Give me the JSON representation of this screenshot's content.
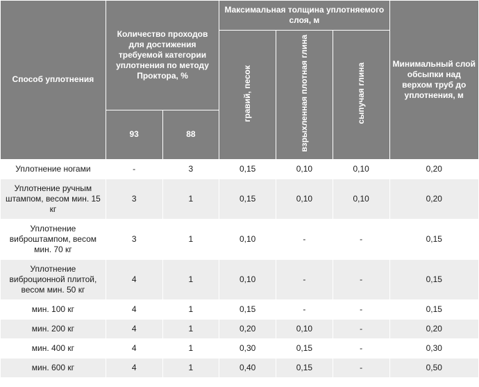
{
  "colors": {
    "header_bg": "#808080",
    "header_fg": "#ffffff",
    "row_odd_bg": "#ffffff",
    "row_even_bg": "#ededed",
    "border": "#ffffff",
    "text": "#1a1a1a"
  },
  "typography": {
    "font_family": "Arial, Helvetica, sans-serif",
    "cell_fontsize_pt": 9,
    "header_fontsize_pt": 9
  },
  "header": {
    "method": "Способ уплотнения",
    "passes_group": "Количество проходов для достижения требуемой категории уплотнения по методу Проктора, %",
    "passes_sub": [
      "93",
      "88"
    ],
    "thickness_group": "Максимальная толщина уплотняемого слоя, м",
    "thickness_sub": [
      "гравий, песок",
      "взрыхленная плотная глина",
      "сыпучая глина"
    ],
    "min_layer": "Минимальный слой обсыпки над верхом труб до уплотнения, м"
  },
  "rows": [
    {
      "method": "Уплотнение ногами",
      "p93": "-",
      "p88": "3",
      "t1": "0,15",
      "t2": "0,10",
      "t3": "0,10",
      "min": "0,20"
    },
    {
      "method": "Уплотнение ручным штампом, весом мин. 15 кг",
      "p93": "3",
      "p88": "1",
      "t1": "0,15",
      "t2": "0,10",
      "t3": "0,10",
      "min": "0,20"
    },
    {
      "method": "Уплотнение виброштампом, весом мин. 70 кг",
      "p93": "3",
      "p88": "1",
      "t1": "0,10",
      "t2": "-",
      "t3": "-",
      "min": "0,15"
    },
    {
      "method": "Уплотнение виброционной плитой, весом мин. 50 кг",
      "p93": "4",
      "p88": "1",
      "t1": "0,10",
      "t2": "-",
      "t3": "-",
      "min": "0,15"
    },
    {
      "method": "мин. 100 кг",
      "p93": "4",
      "p88": "1",
      "t1": "0,15",
      "t2": "-",
      "t3": "-",
      "min": "0,15"
    },
    {
      "method": "мин. 200 кг",
      "p93": "4",
      "p88": "1",
      "t1": "0,20",
      "t2": "0,10",
      "t3": "-",
      "min": "0,20"
    },
    {
      "method": "мин. 400 кг",
      "p93": "4",
      "p88": "1",
      "t1": "0,30",
      "t2": "0,15",
      "t3": "-",
      "min": "0,30"
    },
    {
      "method": "мин. 600 кг",
      "p93": "4",
      "p88": "1",
      "t1": "0,40",
      "t2": "0,15",
      "t3": "-",
      "min": "0,50"
    }
  ]
}
